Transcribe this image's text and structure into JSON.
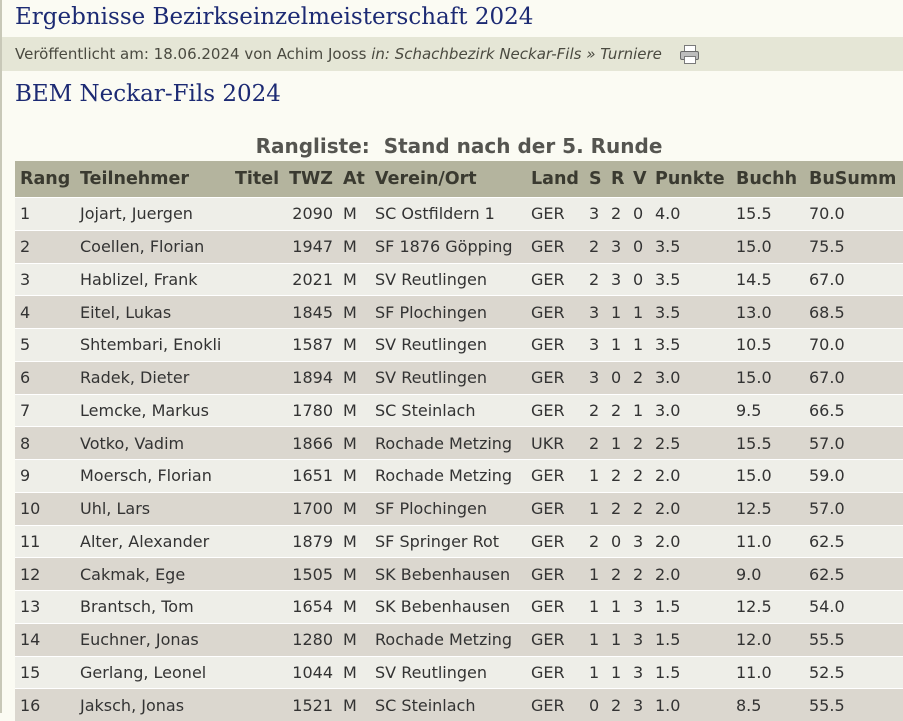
{
  "page_title": "Ergebnisse Bezirkseinzelmeisterschaft 2024",
  "meta": {
    "published_label": "Veröffentlicht am:",
    "published_date": "18.06.2024",
    "by_label": "von",
    "author": "Achim Jooss",
    "in_label": "in:",
    "category": "Schachbezirk Neckar-Fils",
    "separator": "»",
    "subcategory": "Turniere",
    "print_icon": "printer-icon"
  },
  "tournament_title": "BEM Neckar-Fils 2024",
  "caption": "Rangliste:  Stand nach der 5. Runde",
  "table": {
    "headers": [
      "Rang",
      "Teilnehmer",
      "Titel",
      "TWZ",
      "At",
      "Verein/Ort",
      "Land",
      "S",
      "R",
      "V",
      "Punkte",
      "Buchh",
      "BuSumm"
    ],
    "rows": [
      [
        "1",
        "Jojart, Juergen",
        "",
        "2090",
        "M",
        "SC Ostfildern 1",
        "GER",
        "3",
        "2",
        "0",
        "4.0",
        "15.5",
        "70.0"
      ],
      [
        "2",
        "Coellen, Florian",
        "",
        "1947",
        "M",
        "SF 1876 Göpping",
        "GER",
        "2",
        "3",
        "0",
        "3.5",
        "15.0",
        "75.5"
      ],
      [
        "3",
        "Hablizel, Frank",
        "",
        "2021",
        "M",
        "SV Reutlingen",
        "GER",
        "2",
        "3",
        "0",
        "3.5",
        "14.5",
        "67.0"
      ],
      [
        "4",
        "Eitel, Lukas",
        "",
        "1845",
        "M",
        "SF Plochingen",
        "GER",
        "3",
        "1",
        "1",
        "3.5",
        "13.0",
        "68.5"
      ],
      [
        "5",
        "Shtembari, Enokli",
        "",
        "1587",
        "M",
        "SV Reutlingen",
        "GER",
        "3",
        "1",
        "1",
        "3.5",
        "10.5",
        "70.0"
      ],
      [
        "6",
        "Radek, Dieter",
        "",
        "1894",
        "M",
        "SV Reutlingen",
        "GER",
        "3",
        "0",
        "2",
        "3.0",
        "15.0",
        "67.0"
      ],
      [
        "7",
        "Lemcke, Markus",
        "",
        "1780",
        "M",
        "SC Steinlach",
        "GER",
        "2",
        "2",
        "1",
        "3.0",
        "9.5",
        "66.5"
      ],
      [
        "8",
        "Votko, Vadim",
        "",
        "1866",
        "M",
        "Rochade Metzing",
        "UKR",
        "2",
        "1",
        "2",
        "2.5",
        "15.5",
        "57.0"
      ],
      [
        "9",
        "Moersch, Florian",
        "",
        "1651",
        "M",
        "Rochade Metzing",
        "GER",
        "1",
        "2",
        "2",
        "2.0",
        "15.0",
        "59.0"
      ],
      [
        "10",
        "Uhl, Lars",
        "",
        "1700",
        "M",
        "SF Plochingen",
        "GER",
        "1",
        "2",
        "2",
        "2.0",
        "12.5",
        "57.0"
      ],
      [
        "11",
        "Alter, Alexander",
        "",
        "1879",
        "M",
        "SF Springer Rot",
        "GER",
        "2",
        "0",
        "3",
        "2.0",
        "11.0",
        "62.5"
      ],
      [
        "12",
        "Cakmak, Ege",
        "",
        "1505",
        "M",
        "SK Bebenhausen",
        "GER",
        "1",
        "2",
        "2",
        "2.0",
        "9.0",
        "62.5"
      ],
      [
        "13",
        "Brantsch, Tom",
        "",
        "1654",
        "M",
        "SK Bebenhausen",
        "GER",
        "1",
        "1",
        "3",
        "1.5",
        "12.5",
        "54.0"
      ],
      [
        "14",
        "Euchner, Jonas",
        "",
        "1280",
        "M",
        "Rochade Metzing",
        "GER",
        "1",
        "1",
        "3",
        "1.5",
        "12.0",
        "55.5"
      ],
      [
        "15",
        "Gerlang, Leonel",
        "",
        "1044",
        "M",
        "SV Reutlingen",
        "GER",
        "1",
        "1",
        "3",
        "1.5",
        "11.0",
        "52.5"
      ],
      [
        "16",
        "Jaksch, Jonas",
        "",
        "1521",
        "M",
        "SC Steinlach",
        "GER",
        "0",
        "2",
        "3",
        "1.0",
        "8.5",
        "55.5"
      ]
    ]
  }
}
